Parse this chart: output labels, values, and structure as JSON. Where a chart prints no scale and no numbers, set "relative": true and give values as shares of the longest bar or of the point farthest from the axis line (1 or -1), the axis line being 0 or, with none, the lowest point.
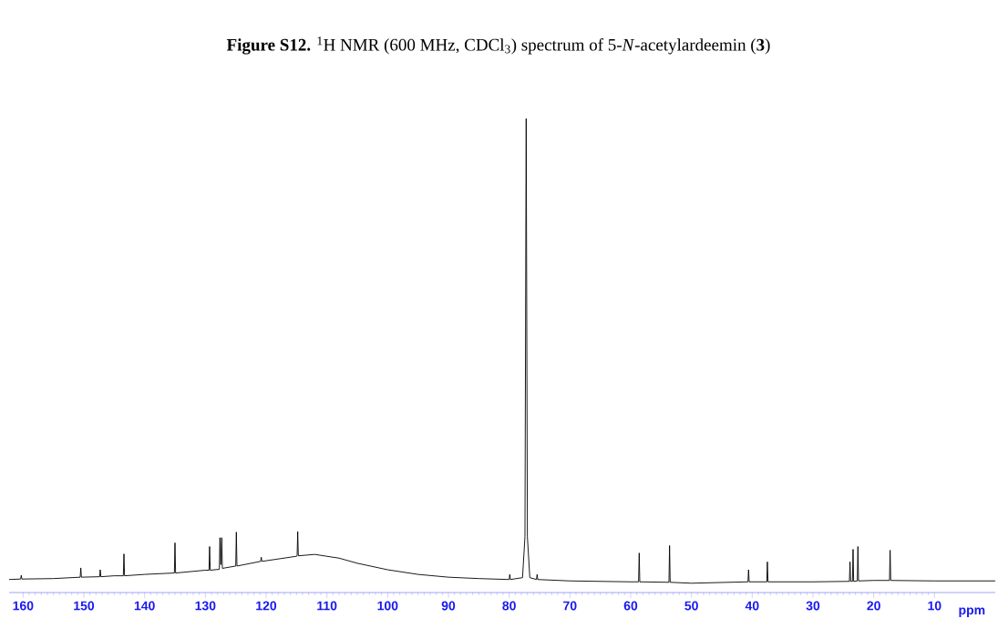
{
  "chart_data": {
    "type": "line",
    "relative": true,
    "title": "**Figure S12.** $^{1}$H NMR (600 MHz, CDCl$_{3}$) spectrum of 5-*N*-acetylardeemin (**3**)",
    "xlabel": "ppm",
    "xlim": [
      162.3,
      0
    ],
    "xticks": [
      160,
      150,
      140,
      130,
      120,
      110,
      100,
      90,
      80,
      70,
      60,
      50,
      40,
      30,
      20,
      10
    ],
    "marker": "none",
    "line_style": "solid",
    "series": [
      {
        "color": "#000000",
        "x": [
          162.3,
          160.4,
          160.3,
          160.2,
          155,
          150.6,
          150.5,
          150.4,
          147.4,
          147.3,
          147.2,
          145,
          143.5,
          143.4,
          143.3,
          140,
          135.1,
          135.0,
          134.9,
          130,
          129.4,
          129.3,
          129.2,
          127.7,
          127.6,
          127.45,
          127.3,
          127.2,
          125,
          124.9,
          124.8,
          120.9,
          120.8,
          120.7,
          115,
          114.9,
          114.8,
          114.7,
          112,
          108,
          105,
          100,
          95,
          90,
          85,
          80.0,
          79.9,
          79.8,
          77.8,
          77.4,
          77.2,
          77.0,
          76.6,
          75.5,
          75.4,
          75.3,
          70,
          60,
          58.7,
          58.6,
          58.5,
          53.7,
          53.6,
          53.5,
          50,
          40.7,
          40.6,
          40.5,
          37.6,
          37.5,
          37.4,
          30,
          24.0,
          23.9,
          23.8,
          23.5,
          23.4,
          23.3,
          22.7,
          22.6,
          22.5,
          20,
          17.4,
          17.3,
          17.2,
          10,
          0
        ],
        "values": [
          0.008,
          0.009,
          0.017,
          0.009,
          0.01,
          0.013,
          0.033,
          0.013,
          0.014,
          0.029,
          0.014,
          0.016,
          0.016,
          0.063,
          0.016,
          0.019,
          0.022,
          0.087,
          0.022,
          0.028,
          0.028,
          0.079,
          0.028,
          0.03,
          0.098,
          0.04,
          0.098,
          0.032,
          0.037,
          0.11,
          0.037,
          0.047,
          0.056,
          0.047,
          0.058,
          0.059,
          0.111,
          0.059,
          0.062,
          0.054,
          0.043,
          0.029,
          0.019,
          0.013,
          0.01,
          0.008,
          0.019,
          0.008,
          0.012,
          0.1,
          1,
          0.1,
          0.012,
          0.008,
          0.019,
          0.008,
          0.005,
          0.003,
          0.003,
          0.065,
          0.003,
          0.002,
          0.081,
          0.002,
          0,
          0.003,
          0.029,
          0.003,
          0.003,
          0.046,
          0.003,
          0.003,
          0.004,
          0.046,
          0.004,
          0.004,
          0.073,
          0.004,
          0.005,
          0.079,
          0.005,
          0.006,
          0.006,
          0.071,
          0.006,
          0.005,
          0.005
        ]
      }
    ]
  }
}
